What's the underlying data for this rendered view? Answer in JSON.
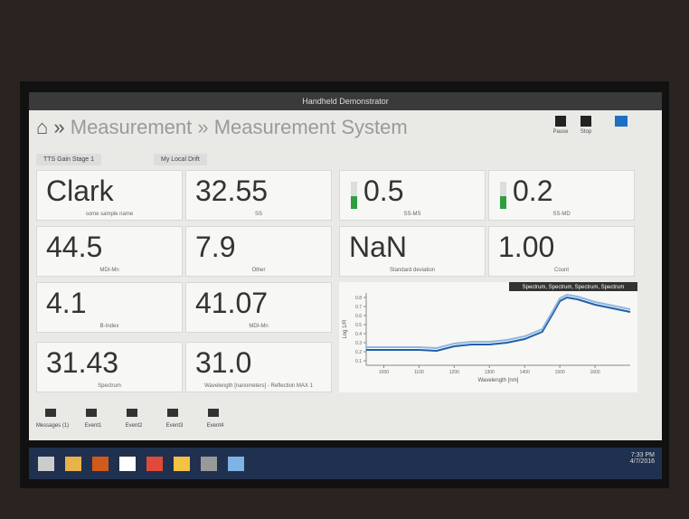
{
  "window": {
    "title": "Handheld Demonstrator"
  },
  "breadcrumb": [
    "Measurement",
    "Measurement System"
  ],
  "toolbar": [
    "Pause",
    "Stop"
  ],
  "tabs": [
    "TTS Gain Stage 1",
    "My Local Drift"
  ],
  "tiles": [
    {
      "value": "Clark",
      "label": "some sample name"
    },
    {
      "value": "32.55",
      "label": "SS"
    },
    {
      "value": "0.5",
      "label": "SS-MS",
      "gauge": true
    },
    {
      "value": "0.2",
      "label": "SS-MD",
      "gauge": true
    },
    {
      "value": "44.5",
      "label": "MDI-Mn"
    },
    {
      "value": "7.9",
      "label": "Other"
    },
    {
      "value": "NaN",
      "label": "Standard deviation"
    },
    {
      "value": "1.00",
      "label": "Count"
    },
    {
      "value": "4.1",
      "label": "B-Index"
    },
    {
      "value": "41.07",
      "label": "MDI-Mn"
    },
    {
      "value": "31.43",
      "label": "Spectrum"
    },
    {
      "value": "31.0",
      "label": "Wavelength [nanometers] - Reflection MAX 1"
    }
  ],
  "chart_data": {
    "type": "line",
    "tooltip": "Spectrum, Spectrum, Spectrum, Spectrum",
    "x_label": "Wavelength [nm]",
    "y_label": "Log 1/R",
    "x": [
      950,
      1000,
      1050,
      1100,
      1150,
      1200,
      1250,
      1300,
      1350,
      1400,
      1450,
      1480,
      1500,
      1520,
      1550,
      1600,
      1650,
      1700
    ],
    "series": [
      {
        "color": "#1f5fa8",
        "values": [
          0.22,
          0.22,
          0.22,
          0.22,
          0.21,
          0.26,
          0.28,
          0.28,
          0.3,
          0.34,
          0.42,
          0.62,
          0.76,
          0.8,
          0.78,
          0.72,
          0.68,
          0.64
        ]
      },
      {
        "color": "#8fb6e0",
        "values": [
          0.25,
          0.25,
          0.25,
          0.25,
          0.24,
          0.29,
          0.31,
          0.31,
          0.33,
          0.37,
          0.45,
          0.65,
          0.79,
          0.83,
          0.81,
          0.75,
          0.71,
          0.67
        ]
      }
    ],
    "xlim": [
      950,
      1700
    ],
    "ylim": [
      0.05,
      0.85
    ],
    "xticks": [
      1000,
      1100,
      1200,
      1300,
      1400,
      1500,
      1600
    ],
    "yticks": [
      0.1,
      0.2,
      0.3,
      0.4,
      0.5,
      0.6,
      0.7,
      0.8
    ]
  },
  "flags": [
    "Messages (1)",
    "Event1",
    "Event2",
    "Event3",
    "Event4"
  ],
  "taskbar": {
    "time": "7:33 PM",
    "date": "4/7/2016"
  }
}
